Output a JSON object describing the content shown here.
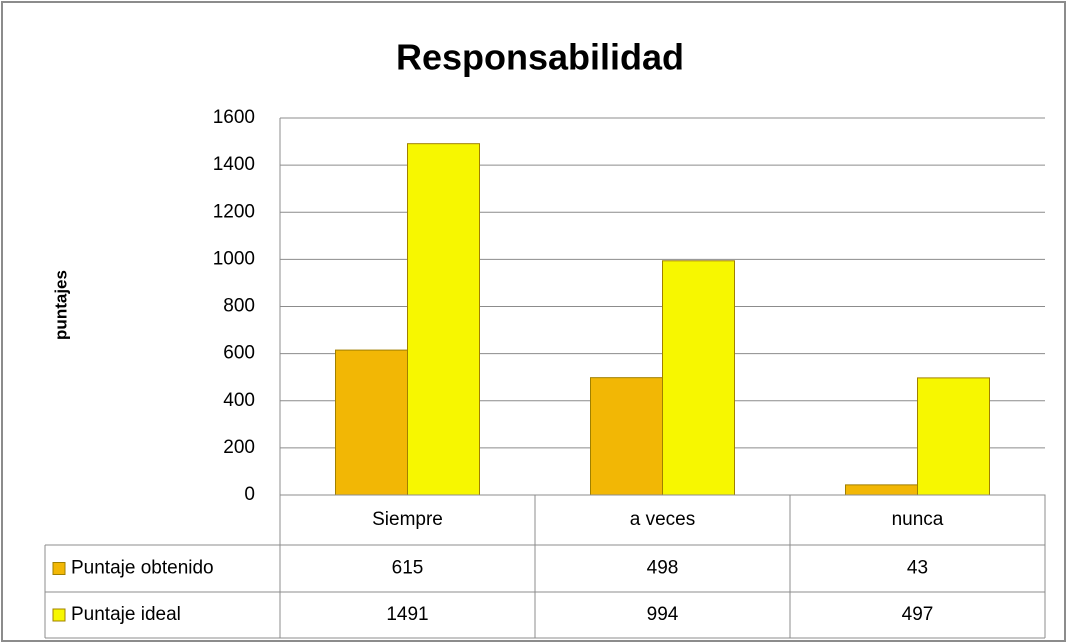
{
  "chart_data": {
    "type": "bar",
    "title": "Responsabilidad",
    "y_label": "puntajes",
    "categories": [
      "Siempre",
      "a veces",
      "nunca"
    ],
    "series": [
      {
        "name": "Puntaje obtenido",
        "color": "#f2b705",
        "values": [
          615,
          498,
          43
        ]
      },
      {
        "name": "Puntaje ideal",
        "color": "#f7f700",
        "values": [
          1491,
          994,
          497
        ]
      }
    ],
    "ylim": [
      0,
      1600
    ],
    "yticks": [
      0,
      200,
      400,
      600,
      800,
      1000,
      1200,
      1400,
      1600
    ],
    "grid": true,
    "data_table": true
  }
}
